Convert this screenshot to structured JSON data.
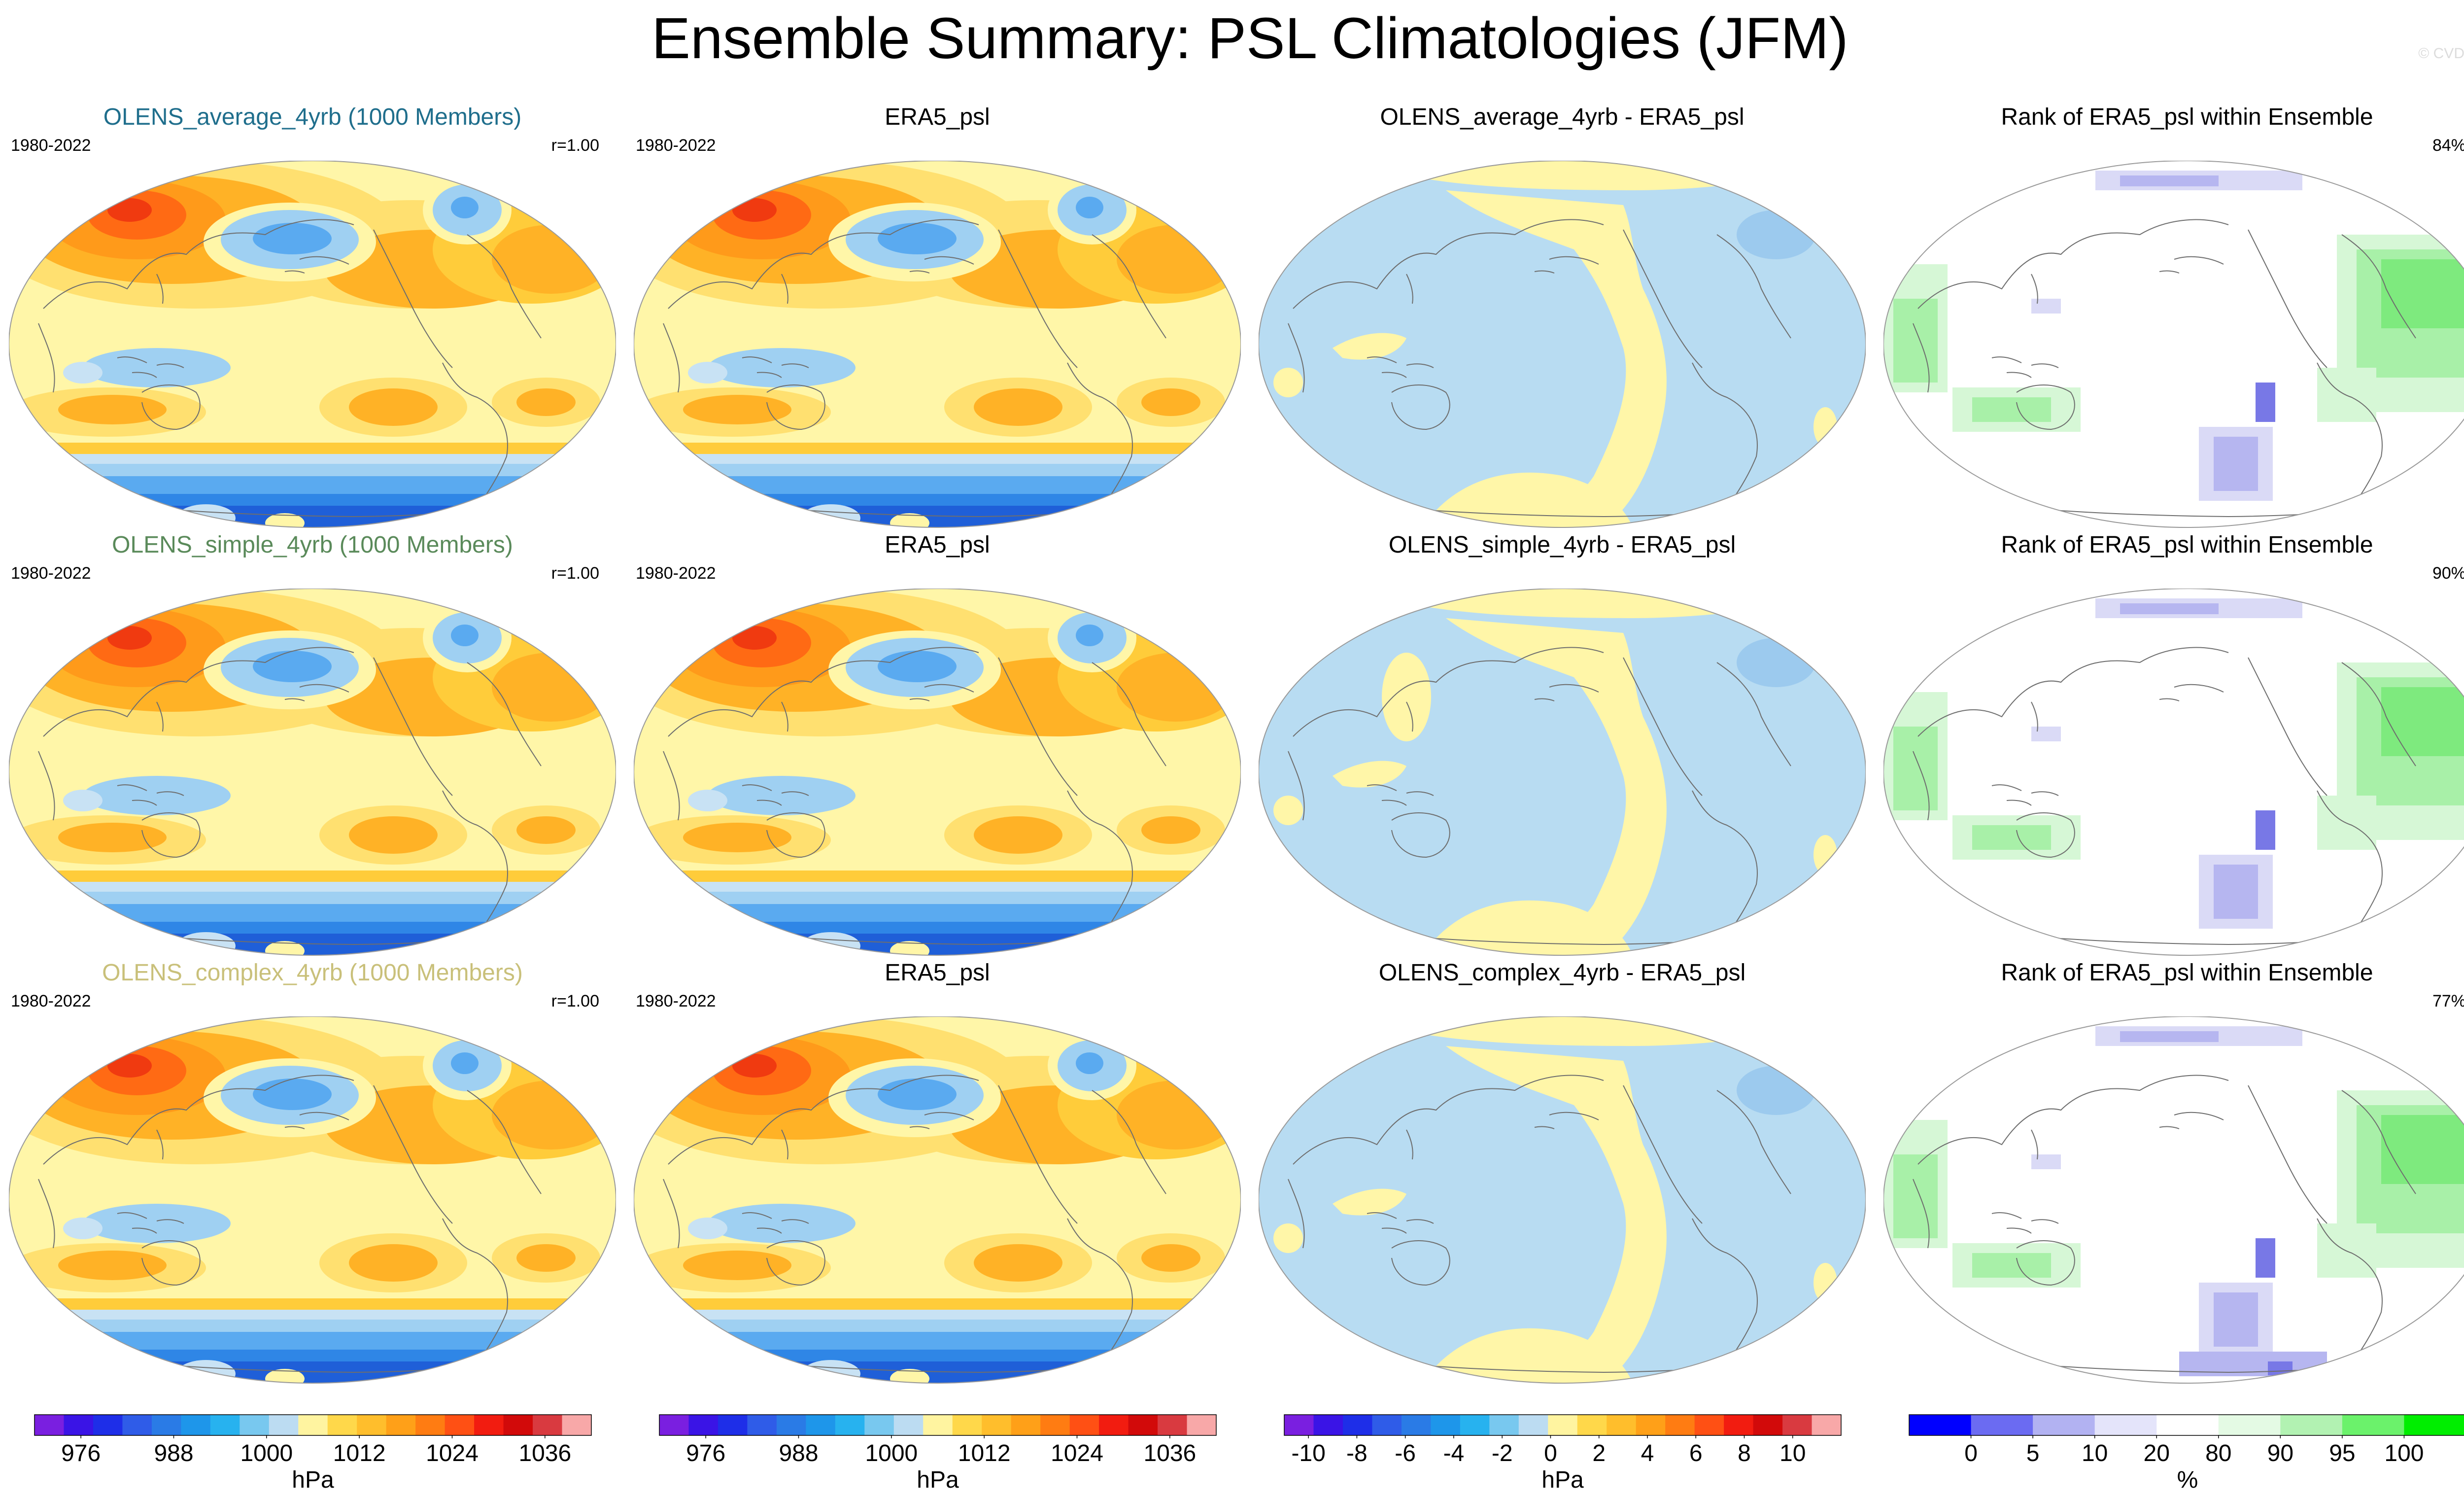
{
  "title": "Ensemble Summary: PSL Climatologies (JFM)",
  "copyright": "© CVDP",
  "rows": [
    {
      "ensemble": "OLENS_average_4yrb (1000 Members)",
      "color": "#1f6e8c",
      "years": "1980-2022",
      "r": "r=1.00",
      "era": "ERA5_psl",
      "diff": "OLENS_average_4yrb - ERA5_psl",
      "rank": "Rank of ERA5_psl within Ensemble",
      "pct": "84%"
    },
    {
      "ensemble": "OLENS_simple_4yrb (1000 Members)",
      "color": "#5a8a5a",
      "years": "1980-2022",
      "r": "r=1.00",
      "era": "ERA5_psl",
      "diff": "OLENS_simple_4yrb - ERA5_psl",
      "rank": "Rank of ERA5_psl within Ensemble",
      "pct": "90%"
    },
    {
      "ensemble": "OLENS_complex_4yrb (1000 Members)",
      "color": "#c9c07a",
      "years": "1980-2022",
      "r": "r=1.00",
      "era": "ERA5_psl",
      "diff": "OLENS_complex_4yrb - ERA5_psl",
      "rank": "Rank of ERA5_psl within Ensemble",
      "pct": "77%"
    }
  ],
  "colorbars": [
    {
      "unit": "hPa",
      "ticks": [
        "976",
        "988",
        "1000",
        "1012",
        "1024",
        "1036"
      ],
      "tick_values": [
        976,
        988,
        1000,
        1012,
        1024,
        1036
      ],
      "levels": [
        970,
        1042
      ],
      "colors": [
        "#7a1fe0",
        "#3a14e6",
        "#1e2ee8",
        "#2f5ce8",
        "#2a7be6",
        "#1e96ea",
        "#27b2ef",
        "#78c8ef",
        "#bcdcf2",
        "#fff4a0",
        "#ffd84a",
        "#ffbe2c",
        "#ffa018",
        "#ff7c12",
        "#ff5014",
        "#f21c10",
        "#d20a0a",
        "#d93a40",
        "#f8a8a8"
      ]
    },
    {
      "unit": "hPa",
      "ticks": [
        "976",
        "988",
        "1000",
        "1012",
        "1024",
        "1036"
      ],
      "tick_values": [
        976,
        988,
        1000,
        1012,
        1024,
        1036
      ],
      "levels": [
        970,
        1042
      ],
      "colors": [
        "#7a1fe0",
        "#3a14e6",
        "#1e2ee8",
        "#2f5ce8",
        "#2a7be6",
        "#1e96ea",
        "#27b2ef",
        "#78c8ef",
        "#bcdcf2",
        "#fff4a0",
        "#ffd84a",
        "#ffbe2c",
        "#ffa018",
        "#ff7c12",
        "#ff5014",
        "#f21c10",
        "#d20a0a",
        "#d93a40",
        "#f8a8a8"
      ]
    },
    {
      "unit": "hPa",
      "ticks": [
        "-10",
        "-8",
        "-6",
        "-4",
        "-2",
        "0",
        "2",
        "4",
        "6",
        "8",
        "10"
      ],
      "tick_values": [
        -10,
        -8,
        -6,
        -4,
        -2,
        0,
        2,
        4,
        6,
        8,
        10
      ],
      "levels": [
        -11,
        12
      ],
      "colors": [
        "#7a1fe0",
        "#3a14e6",
        "#1e2ee8",
        "#2f5ce8",
        "#2a7be6",
        "#1e96ea",
        "#27b2ef",
        "#78c8ef",
        "#bcdcf2",
        "#fff4a0",
        "#ffd84a",
        "#ffbe2c",
        "#ffa018",
        "#ff7c12",
        "#ff5014",
        "#f21c10",
        "#d20a0a",
        "#d93a40",
        "#f8a8a8"
      ]
    },
    {
      "unit": "%",
      "ticks": [
        "0",
        "5",
        "10",
        "20",
        "80",
        "90",
        "95",
        "100"
      ],
      "tick_index": [
        1,
        2,
        3,
        4,
        5,
        6,
        7,
        8
      ],
      "colors": [
        "#0000ff",
        "#6b6bf2",
        "#b2b2f2",
        "#e4e4fa",
        "#ffffff",
        "#e4fae4",
        "#b2f2b2",
        "#6bf26b",
        "#00ee00"
      ]
    }
  ],
  "chart_data": {
    "type": "heatmap",
    "description_panels": [
      "ensemble climatology",
      "ERA5 climatology",
      "difference",
      "rank"
    ],
    "psl_range_hPa": [
      970,
      1042
    ],
    "difference_range_hPa": [
      -10,
      10
    ],
    "rank_percent_bins": [
      0,
      5,
      10,
      20,
      80,
      90,
      95,
      100
    ]
  }
}
